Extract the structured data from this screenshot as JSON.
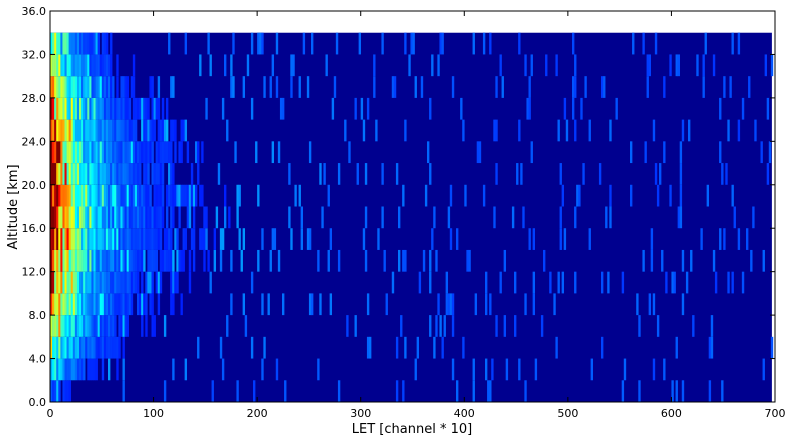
{
  "chart_data": {
    "type": "heatmap",
    "title": "",
    "xlabel": "LET [channel * 10]",
    "ylabel": "Altitude [km]",
    "xlim": [
      0,
      700
    ],
    "ylim": [
      0,
      36
    ],
    "xticks": [
      0,
      100,
      200,
      300,
      400,
      500,
      600,
      700
    ],
    "xtick_labels": [
      "0",
      "100",
      "200",
      "300",
      "400",
      "500",
      "600",
      "700"
    ],
    "yticks": [
      0,
      4,
      8,
      12,
      16,
      20,
      24,
      28,
      32,
      36
    ],
    "ytick_labels": [
      "0.0",
      "4.0",
      "8.0",
      "12.0",
      "16.0",
      "20.0",
      "24.0",
      "28.0",
      "32.0",
      "36.0"
    ],
    "colormap": "jet",
    "data_extent": {
      "x": [
        0,
        697
      ],
      "y": [
        0,
        34
      ]
    },
    "y_bins": [
      0,
      2,
      4,
      6,
      8,
      10,
      12,
      14,
      16,
      18,
      20,
      22,
      24,
      26,
      28,
      30,
      32,
      34
    ],
    "row_intensity_near_zero": [
      0.1,
      0.3,
      0.45,
      0.55,
      0.7,
      0.78,
      0.9,
      0.96,
      1.0,
      0.98,
      0.93,
      0.85,
      0.8,
      0.7,
      0.6,
      0.45,
      0.35
    ],
    "background_color": "#00008f",
    "grid": false,
    "legend": "none"
  }
}
